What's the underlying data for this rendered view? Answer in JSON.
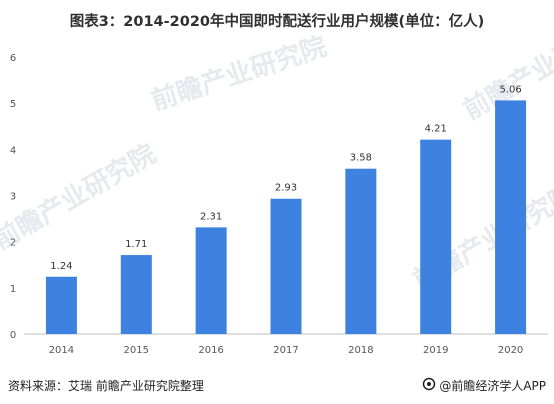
{
  "title": "图表3：2014-2020年中国即时配送行业用户规模(单位：亿人)",
  "source": "资料来源：艾瑞 前瞻产业研究院整理",
  "footer_brand": "@前瞻经济学人APP",
  "watermark": "前瞻产业研究院",
  "colors": {
    "bar": "#3d82e0",
    "axis": "#bfbfbf"
  },
  "chart_data": {
    "type": "bar",
    "categories": [
      "2014",
      "2015",
      "2016",
      "2017",
      "2018",
      "2019",
      "2020"
    ],
    "values": [
      1.24,
      1.71,
      2.31,
      2.93,
      3.58,
      4.21,
      5.06
    ],
    "ylim": [
      0,
      6
    ],
    "yticks": [
      0,
      1,
      2,
      3,
      4,
      5,
      6
    ],
    "grid": false,
    "legend": "none",
    "data_labels": true
  }
}
